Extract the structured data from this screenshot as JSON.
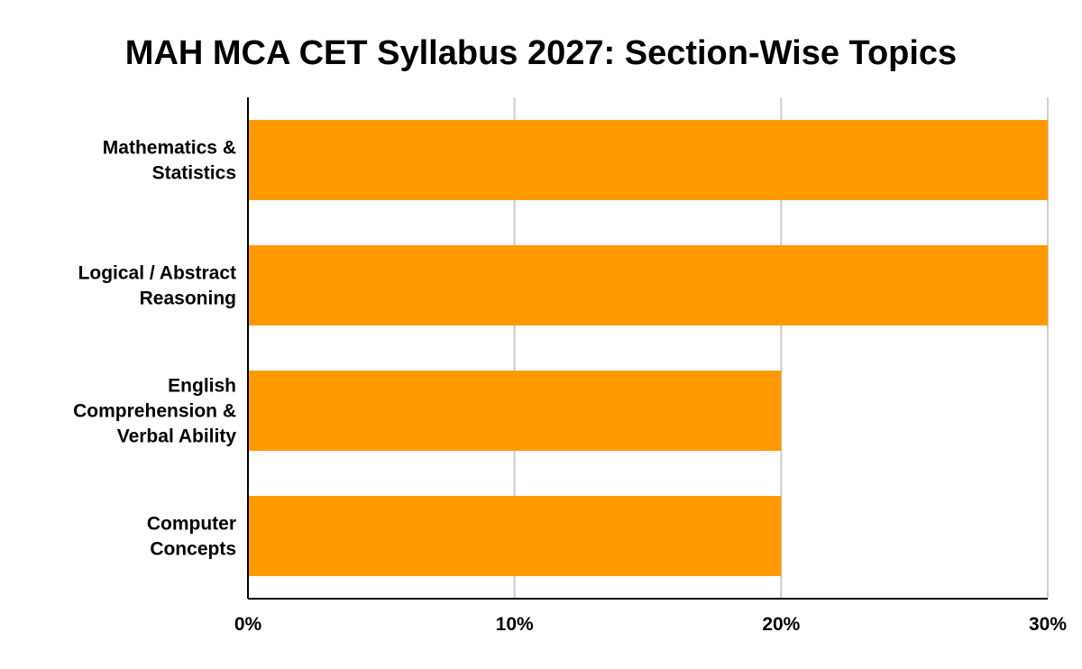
{
  "chart_data": {
    "type": "bar",
    "orientation": "horizontal",
    "title": "MAH MCA CET Syllabus 2027: Section-Wise Topics",
    "categories": [
      [
        "Mathematics &",
        "Statistics"
      ],
      [
        "Logical / Abstract",
        "Reasoning"
      ],
      [
        "English",
        "Comprehension &",
        "Verbal Ability"
      ],
      [
        "Computer",
        "Concepts"
      ]
    ],
    "values": [
      30,
      30,
      20,
      20
    ],
    "value_unit": "%",
    "xlim": [
      0,
      30
    ],
    "xticks": [
      "0%",
      "10%",
      "20%",
      "30%"
    ],
    "xlabel": "",
    "ylabel": "",
    "grid": "vertical",
    "legend": "none",
    "bar_color": "#ff9900",
    "grid_color": "#cccccc",
    "axis_color": "#000000"
  }
}
